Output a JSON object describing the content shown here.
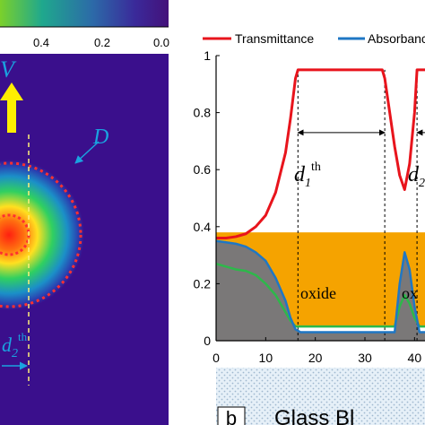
{
  "panel_a": {
    "colorbar_ticks": [
      "0.4",
      "0.2",
      "0.0"
    ],
    "arrow_label": "V",
    "circle_label": "D",
    "dim_label_main": "d",
    "dim_label_sub": "2",
    "dim_label_sup": "th"
  },
  "panel_b": {
    "panel_label": "b",
    "substrate_label": "Glass Bl",
    "oxide_label_1": "oxide",
    "oxide_label_2": "ox",
    "d1_main": "d",
    "d1_sub": "1",
    "d1_sup": "th",
    "d2_main": "d",
    "d2_sub": "2"
  },
  "colors": {
    "transmittance": "#e8141c",
    "absorbance": "#1f77c4",
    "green_curve": "#2db84a",
    "oxide_fill": "#f5a300",
    "dark_fill": "#7a7878",
    "background_panel_a": "#3a0f8c",
    "arrow": "#ffee00",
    "annotation": "#1aa3e0"
  },
  "chart_data": {
    "type": "line",
    "legend_position": "top",
    "x_ticks": [
      "0",
      "10",
      "20",
      "30",
      "40"
    ],
    "y_ticks": [
      "0",
      "0.2",
      "0.4",
      "0.6",
      "0.8",
      "1"
    ],
    "xlim": [
      0,
      45
    ],
    "ylim": [
      0,
      1
    ],
    "series": [
      {
        "name": "Transmittance",
        "x": [
          0,
          2,
          4,
          6,
          8,
          10,
          12,
          14,
          15,
          16,
          16.5,
          33.5,
          34,
          35,
          36,
          37,
          38,
          39,
          40,
          40.5,
          45
        ],
        "y": [
          0.36,
          0.36,
          0.365,
          0.375,
          0.4,
          0.44,
          0.52,
          0.66,
          0.78,
          0.92,
          0.95,
          0.95,
          0.92,
          0.8,
          0.68,
          0.58,
          0.53,
          0.62,
          0.8,
          0.95,
          0.95
        ]
      },
      {
        "name": "Absorbance",
        "x": [
          0,
          2,
          4,
          6,
          8,
          10,
          12,
          14,
          15,
          16,
          17,
          36,
          37,
          38,
          39,
          40,
          41,
          45
        ],
        "y": [
          0.35,
          0.345,
          0.34,
          0.33,
          0.31,
          0.28,
          0.22,
          0.14,
          0.08,
          0.04,
          0.03,
          0.03,
          0.2,
          0.31,
          0.25,
          0.12,
          0.03,
          0.03
        ]
      },
      {
        "x": [
          0,
          2,
          4,
          6,
          8,
          10,
          12,
          14,
          15,
          16,
          17,
          36,
          37,
          38,
          39,
          40,
          41,
          45
        ],
        "y": [
          0.27,
          0.26,
          0.25,
          0.245,
          0.23,
          0.2,
          0.16,
          0.1,
          0.07,
          0.05,
          0.05,
          0.05,
          0.12,
          0.16,
          0.13,
          0.08,
          0.05,
          0.05
        ]
      }
    ],
    "oxide_band": {
      "y0": 0.05,
      "y1": 0.38
    },
    "dashed_markers_x": [
      16.5,
      34,
      40.5
    ],
    "dimension_arrows": [
      {
        "from": 16.5,
        "to": 34,
        "y": 0.73
      },
      {
        "from": 40.5,
        "to": 45,
        "y": 0.73
      }
    ]
  }
}
